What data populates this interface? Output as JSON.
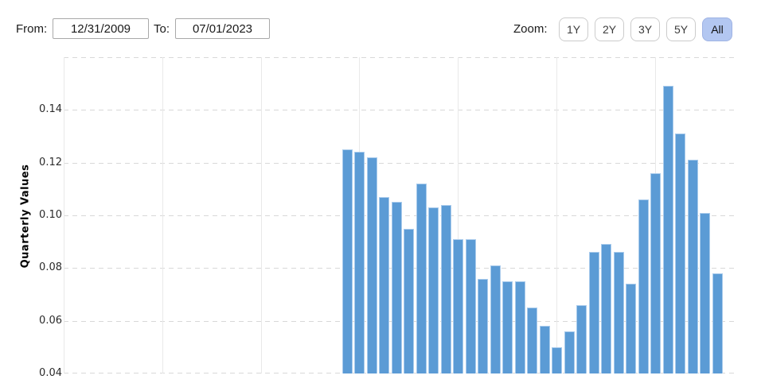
{
  "controls": {
    "from_label": "From:",
    "from_value": "12/31/2009",
    "to_label": "To:",
    "to_value": "07/01/2023",
    "zoom_label": "Zoom:",
    "zoom_buttons": [
      {
        "label": "1Y",
        "active": false
      },
      {
        "label": "2Y",
        "active": false
      },
      {
        "label": "3Y",
        "active": false
      },
      {
        "label": "5Y",
        "active": false
      },
      {
        "label": "All",
        "active": true
      }
    ]
  },
  "chart_data": {
    "type": "bar",
    "title": "",
    "xlabel": "",
    "ylabel": "Quarterly Values",
    "ylim": [
      0.04,
      0.16
    ],
    "y_tick_labels": [
      "0.14",
      "0.12",
      "0.10",
      "0.08",
      "0.06",
      "0.04"
    ],
    "y_gridlines": [
      0.16,
      0.14,
      0.12,
      0.1,
      0.08,
      0.06,
      0.04
    ],
    "grid": "horizontal dashed gridlines at 0.02 steps; faint solid vertical gridlines every 2 years",
    "legend_position": "none",
    "x_axis_range": [
      "12/31/2009",
      "07/01/2023"
    ],
    "x_gridline_dates_estimated": [
      "2009-12-31",
      "2011-12-31",
      "2013-12-31",
      "2015-12-31",
      "2017-12-31",
      "2019-12-31",
      "2021-12-31"
    ],
    "x": [
      "2015-09-30",
      "2015-12-31",
      "2016-03-31",
      "2016-06-30",
      "2016-09-30",
      "2016-12-31",
      "2017-03-31",
      "2017-06-30",
      "2017-09-30",
      "2017-12-31",
      "2018-03-31",
      "2018-06-30",
      "2018-09-30",
      "2018-12-31",
      "2019-03-31",
      "2019-06-30",
      "2019-09-30",
      "2019-12-31",
      "2020-03-31",
      "2020-06-30",
      "2020-09-30",
      "2020-12-31",
      "2021-03-31",
      "2021-06-30",
      "2021-09-30",
      "2021-12-31",
      "2022-03-31",
      "2022-06-30",
      "2022-09-30",
      "2022-12-31",
      "2023-03-31"
    ],
    "values": [
      0.125,
      0.124,
      0.122,
      0.107,
      0.105,
      0.095,
      0.112,
      0.103,
      0.104,
      0.091,
      0.091,
      0.076,
      0.081,
      0.075,
      0.075,
      0.065,
      0.058,
      0.05,
      0.056,
      0.066,
      0.086,
      0.089,
      0.086,
      0.074,
      0.106,
      0.116,
      0.149,
      0.131,
      0.121,
      0.101,
      0.078
    ],
    "bars_clipped_at_ymin": true
  },
  "colors": {
    "bar_fill": "#5b9bd5",
    "bar_edge": "#a9cbec",
    "grid_h": "#d8d8d8",
    "grid_v": "#e9e9e9",
    "active_zoom_bg": "#b3c7f1",
    "active_zoom_border": "#9fb3e4",
    "button_border": "#cccccc",
    "input_border": "#a9a9a9",
    "text": "#1a1a1a"
  }
}
